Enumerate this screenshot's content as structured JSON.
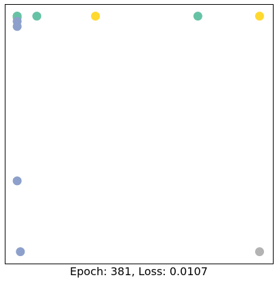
{
  "caption": "Epoch: 381, Loss: 0.0107",
  "chart_data": {
    "type": "scatter",
    "xlim": [
      0,
      1
    ],
    "ylim": [
      0,
      1
    ],
    "grid": false,
    "axes_ticks": false,
    "points": [
      {
        "x": 0.045,
        "y": 0.955,
        "color": "#66c2a5"
      },
      {
        "x": 0.045,
        "y": 0.955,
        "color": "#66c2a5"
      },
      {
        "x": 0.045,
        "y": 0.95,
        "color": "#66c2a5"
      },
      {
        "x": 0.045,
        "y": 0.935,
        "color": "#8da0cb"
      },
      {
        "x": 0.045,
        "y": 0.915,
        "color": "#8da0cb"
      },
      {
        "x": 0.118,
        "y": 0.955,
        "color": "#66c2a5"
      },
      {
        "x": 0.337,
        "y": 0.955,
        "color": "#ffd92f"
      },
      {
        "x": 0.719,
        "y": 0.955,
        "color": "#66c2a5"
      },
      {
        "x": 0.949,
        "y": 0.955,
        "color": "#ffd92f"
      },
      {
        "x": 0.045,
        "y": 0.32,
        "color": "#8da0cb"
      },
      {
        "x": 0.057,
        "y": 0.047,
        "color": "#8da0cb"
      },
      {
        "x": 0.949,
        "y": 0.047,
        "color": "#b3b3b3"
      }
    ]
  }
}
